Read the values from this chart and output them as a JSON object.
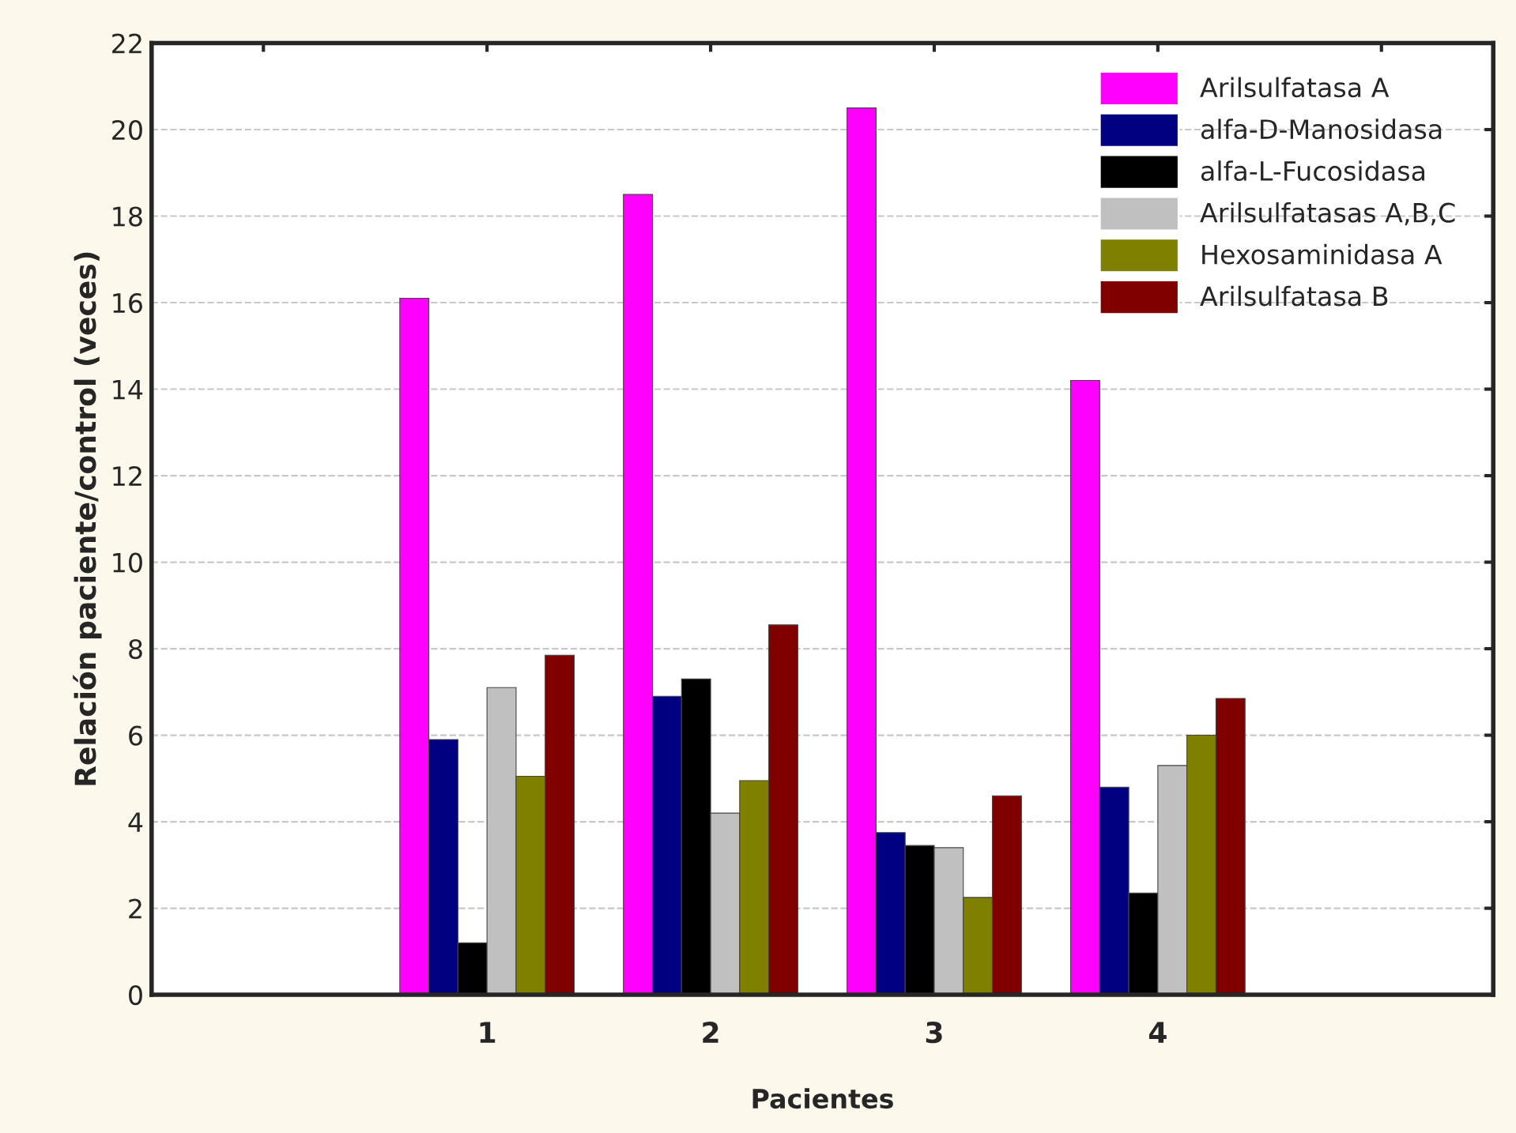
{
  "chart_data": {
    "type": "bar",
    "xlabel": "Pacientes",
    "ylabel": "Relación paciente/control (veces)",
    "categories": [
      null,
      "1",
      "2",
      "3",
      "4",
      null
    ],
    "series": [
      {
        "name": "Arilsulfatasa A",
        "color": "#ff00ff",
        "values": [
          null,
          16.1,
          18.5,
          20.5,
          14.2,
          null
        ]
      },
      {
        "name": "alfa-D-Manosidasa",
        "color": "#000080",
        "values": [
          null,
          5.9,
          6.9,
          3.75,
          4.8,
          null
        ]
      },
      {
        "name": "alfa-L-Fucosidasa",
        "color": "#000000",
        "values": [
          null,
          1.2,
          7.3,
          3.45,
          2.35,
          null
        ]
      },
      {
        "name": "Arilsulfatasas A,B,C",
        "color": "#c0c0c0",
        "values": [
          null,
          7.1,
          4.2,
          3.4,
          5.3,
          null
        ]
      },
      {
        "name": "Hexosaminidasa A",
        "color": "#808000",
        "values": [
          null,
          5.05,
          4.95,
          2.25,
          6.0,
          null
        ]
      },
      {
        "name": "Arilsulfatasa B",
        "color": "#800000",
        "values": [
          null,
          7.85,
          8.55,
          4.6,
          6.85,
          null
        ]
      }
    ],
    "ylim": [
      0,
      22
    ],
    "yticks": [
      0,
      2,
      4,
      6,
      8,
      10,
      12,
      14,
      16,
      18,
      20,
      22
    ],
    "grid": "y",
    "legend": "top right"
  }
}
